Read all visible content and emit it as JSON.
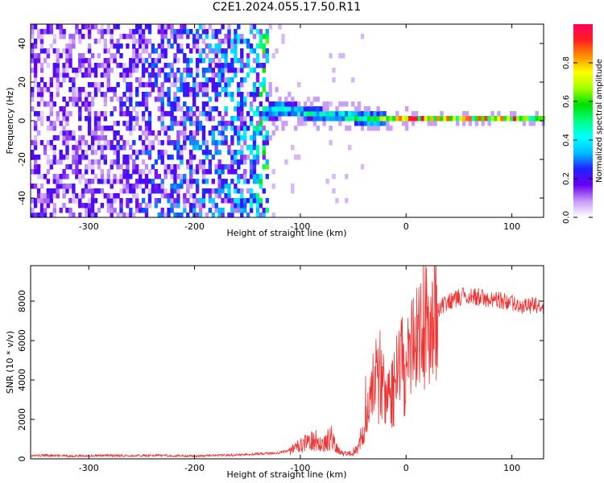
{
  "title": "C2E1.2024.055.17.50.R11",
  "chart_data": [
    {
      "type": "heatmap",
      "xlabel": "Height of straight line (km)",
      "ylabel": "Frequency (Hz)",
      "xlim": [
        -355,
        130
      ],
      "ylim": [
        -50,
        50
      ],
      "x_ticks": [
        -300,
        -200,
        -100,
        0,
        100
      ],
      "y_ticks": [
        -40,
        -20,
        0,
        20,
        40
      ],
      "colorbar": {
        "label": "Normalized spectral amplitude",
        "range": [
          0,
          1
        ],
        "ticks": [
          0.0,
          0.2,
          0.4,
          0.6,
          0.8
        ],
        "colormap": [
          "#ffffff",
          "#c89bf7",
          "#6a00f0",
          "#2020ff",
          "#00bfff",
          "#00ffff",
          "#00ff80",
          "#00e000",
          "#a0ff00",
          "#ffff00",
          "#ff9000",
          "#ff2020",
          "#ff0060"
        ]
      },
      "description_points": [
        {
          "x": -300,
          "y_center": 0,
          "spread": 48,
          "amplitude": 0.12
        },
        {
          "x": -150,
          "y_center": 2,
          "spread": 10,
          "amplitude": 0.22
        },
        {
          "x": -120,
          "y_center": 5,
          "spread": 4,
          "amplitude": 0.45
        },
        {
          "x": -80,
          "y_center": 2,
          "spread": 3,
          "amplitude": 0.5
        },
        {
          "x": -40,
          "y_center": 0,
          "spread": 3,
          "amplitude": 0.55
        },
        {
          "x": 0,
          "y_center": 0,
          "spread": 2,
          "amplitude": 0.9
        },
        {
          "x": 50,
          "y_center": 0,
          "spread": 2,
          "amplitude": 0.7
        },
        {
          "x": 100,
          "y_center": 0,
          "spread": 2,
          "amplitude": 0.85
        },
        {
          "x": 130,
          "y_center": 0,
          "spread": 2,
          "amplitude": 0.5
        }
      ]
    },
    {
      "type": "line",
      "xlabel": "Height of straight line (km)",
      "ylabel": "SNR (10 * v/v)",
      "xlim": [
        -355,
        130
      ],
      "ylim": [
        0,
        9800
      ],
      "x_ticks": [
        -300,
        -200,
        -100,
        0,
        100
      ],
      "y_ticks": [
        0,
        2000,
        4000,
        6000,
        8000
      ],
      "color": "#ee3333",
      "x": [
        -355,
        -340,
        -320,
        -300,
        -280,
        -260,
        -240,
        -220,
        -200,
        -180,
        -160,
        -140,
        -120,
        -110,
        -100,
        -95,
        -90,
        -85,
        -80,
        -75,
        -70,
        -65,
        -60,
        -55,
        -50,
        -45,
        -40,
        -35,
        -30,
        -25,
        -20,
        -15,
        -10,
        -5,
        0,
        5,
        10,
        15,
        20,
        25,
        30,
        35,
        40,
        45,
        50,
        60,
        70,
        80,
        90,
        100,
        110,
        120,
        130
      ],
      "y": [
        150,
        180,
        140,
        160,
        170,
        150,
        180,
        160,
        150,
        170,
        200,
        250,
        300,
        450,
        650,
        800,
        900,
        1000,
        700,
        900,
        1100,
        500,
        300,
        250,
        400,
        600,
        1500,
        3000,
        4500,
        3500,
        4000,
        3000,
        3800,
        5000,
        4500,
        5500,
        5800,
        6200,
        6800,
        7200,
        7500,
        7800,
        8000,
        8100,
        8200,
        8300,
        8200,
        8100,
        8000,
        7900,
        7800,
        7800,
        7700
      ]
    }
  ]
}
